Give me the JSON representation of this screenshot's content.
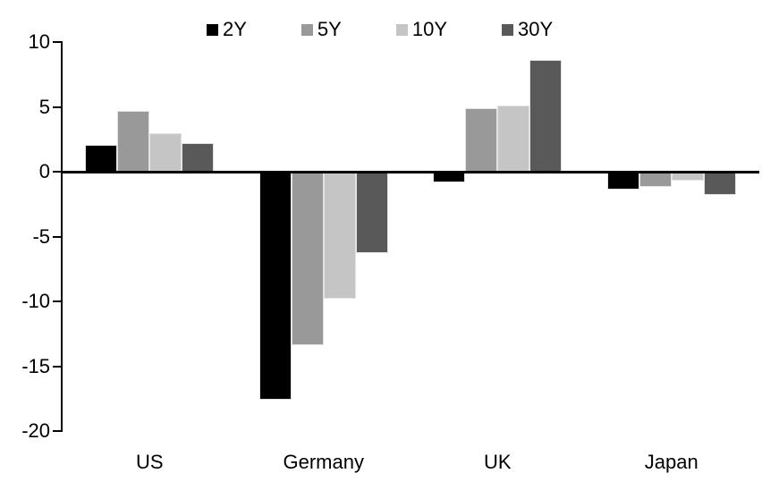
{
  "chart_data": {
    "type": "bar",
    "title": "",
    "xlabel": "",
    "ylabel": "",
    "categories": [
      "US",
      "Germany",
      "UK",
      "Japan"
    ],
    "series": [
      {
        "name": "2Y",
        "color": "#000000",
        "values": [
          2.1,
          -17.6,
          -0.8,
          -1.4
        ]
      },
      {
        "name": "5Y",
        "color": "#999999",
        "values": [
          4.7,
          -13.4,
          4.9,
          -1.2
        ]
      },
      {
        "name": "10Y",
        "color": "#c5c5c5",
        "values": [
          3.0,
          -9.8,
          5.1,
          -0.7
        ]
      },
      {
        "name": "30Y",
        "color": "#595959",
        "values": [
          2.2,
          -6.3,
          8.6,
          -1.8
        ]
      }
    ],
    "ylim": [
      -20,
      10
    ],
    "yticks": [
      10,
      5,
      0,
      -5,
      -10,
      -15,
      -20
    ],
    "legend_position": "top",
    "grid": false,
    "axis_color": "#000000",
    "background_color": "#ffffff"
  }
}
